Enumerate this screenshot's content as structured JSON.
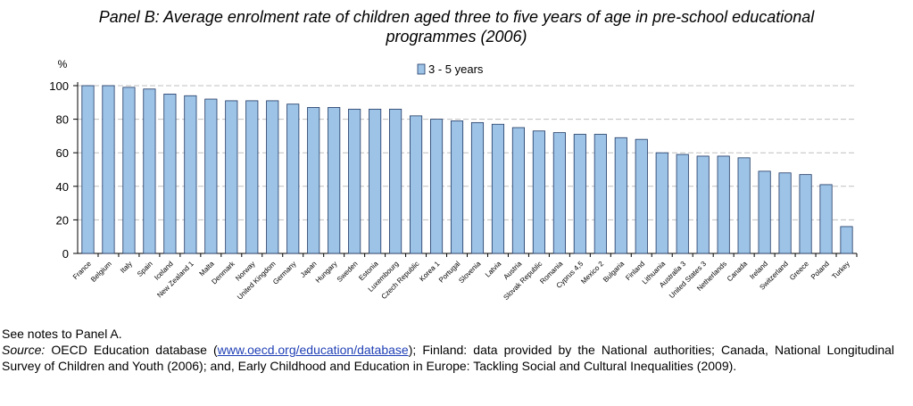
{
  "chart_data": {
    "type": "bar",
    "title": "Panel B: Average enrolment rate of children aged three to five years of age in pre-school educational programmes (2006)",
    "title_line1": "Panel B: Average enrolment rate of children aged three to five years of age in pre-school educational",
    "title_line2": "programmes (2006)",
    "ylabel": "%",
    "xlabel": "",
    "ylim": [
      0,
      100
    ],
    "yticks": [
      0,
      20,
      40,
      60,
      80,
      100
    ],
    "grid": true,
    "legend": "top-center",
    "series": [
      {
        "name": "3 - 5 years",
        "color": "#9dc3e6",
        "values": [
          100,
          100,
          99,
          98,
          95,
          94,
          92,
          91,
          91,
          91,
          89,
          87,
          87,
          86,
          86,
          86,
          82,
          80,
          79,
          78,
          77,
          75,
          73,
          72,
          71,
          71,
          69,
          68,
          60,
          59,
          58,
          58,
          57,
          49,
          48,
          47,
          41,
          16
        ]
      }
    ],
    "categories": [
      "France",
      "Belgium",
      "Italy",
      "Spain",
      "Iceland",
      "New Zealand 1",
      "Malta",
      "Denmark",
      "Norway",
      "United Kingdom",
      "Germany",
      "Japan",
      "Hungary",
      "Sweden",
      "Estonia",
      "Luxembourg",
      "Czech Republic",
      "Korea 1",
      "Portugal",
      "Slovenia",
      "Latvia",
      "Austria",
      "Slovak Republic",
      "Romania",
      "Cyprus 4,5",
      "Mexico 2",
      "Bulgaria",
      "Finland",
      "Lithuania",
      "Australia 3",
      "United States 3",
      "Netherlands",
      "Canada",
      "Ireland",
      "Switzerland",
      "Greece",
      "Poland",
      "Turkey"
    ]
  },
  "notes": {
    "line1": "See notes to Panel A.",
    "source_label": "Source:",
    "source_text_before": " OECD Education database (",
    "source_link": "www.oecd.org/education/database",
    "source_text_after": "); Finland: data provided by the National authorities; Canada, National Longitudinal Survey of Children and Youth (2006); and, Early Childhood and Education in Europe: Tackling Social and Cultural Inequalities (2009)."
  },
  "colors": {
    "bar": "#9dc3e6",
    "bar_stroke": "#1f3864",
    "grid": "#bfbfbf"
  }
}
